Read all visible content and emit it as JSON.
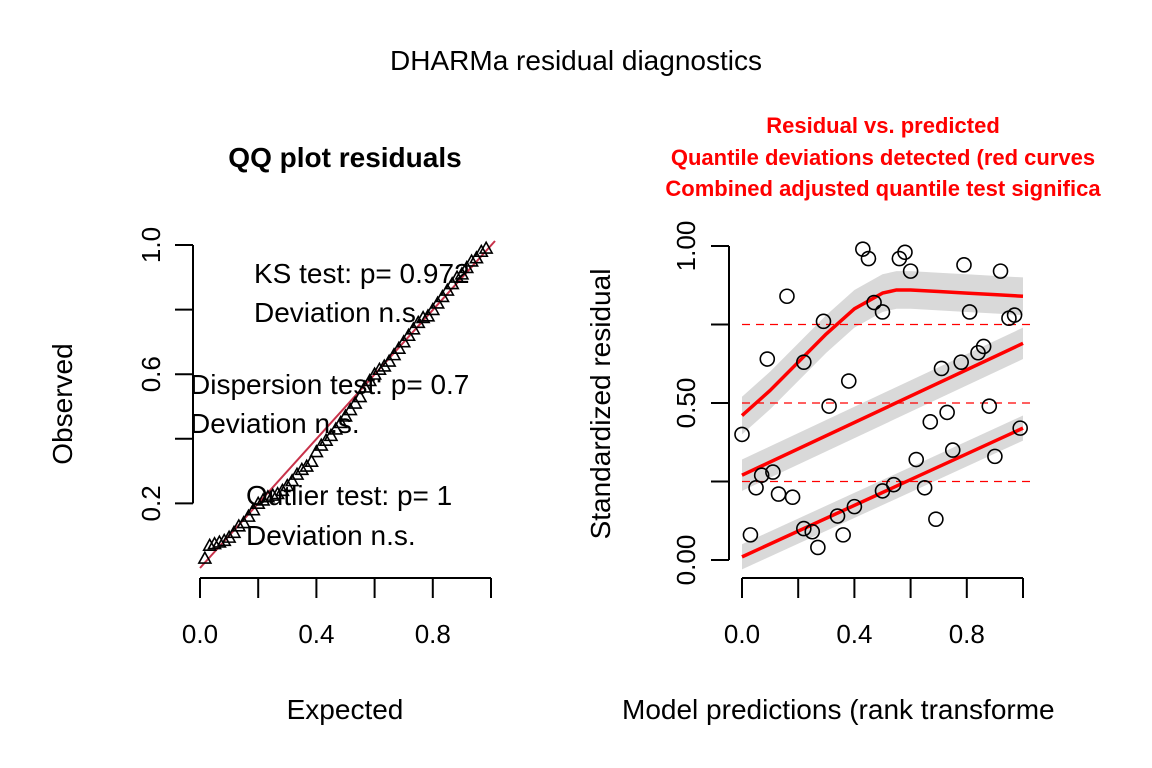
{
  "figure": {
    "title": "DHARMa residual diagnostics"
  },
  "chart_data": [
    {
      "type": "scatter",
      "title": "QQ plot residuals",
      "xlabel": "Expected",
      "ylabel": "Observed",
      "xlim": [
        0,
        1
      ],
      "ylim": [
        0,
        1
      ],
      "xticks": [
        "0.0",
        "0.4",
        "0.8"
      ],
      "yticks": [
        "0.2",
        "0.6",
        "1.0"
      ],
      "grid": false,
      "marker": "triangle",
      "reference_line": {
        "from": [
          0,
          0
        ],
        "to": [
          1,
          1
        ],
        "color": "#c8324a"
      },
      "annotations": [
        {
          "text": "KS test: p= 0.972",
          "line2": "Deviation  n.s."
        },
        {
          "text": "Dispersion test: p= 0.7",
          "line2": "Deviation  n.s."
        },
        {
          "text": "Outlier test: p= 1",
          "line2": "Deviation  n.s."
        }
      ],
      "x": [
        0.0167,
        0.0333,
        0.05,
        0.0667,
        0.0833,
        0.1,
        0.1167,
        0.1333,
        0.15,
        0.1667,
        0.1833,
        0.2,
        0.2167,
        0.2333,
        0.25,
        0.2667,
        0.2833,
        0.3,
        0.3167,
        0.3333,
        0.35,
        0.3667,
        0.3833,
        0.4,
        0.4167,
        0.4333,
        0.45,
        0.4667,
        0.4833,
        0.5,
        0.5167,
        0.5333,
        0.55,
        0.5667,
        0.5833,
        0.6,
        0.6167,
        0.6333,
        0.65,
        0.6667,
        0.6833,
        0.7,
        0.7167,
        0.7333,
        0.75,
        0.7667,
        0.7833,
        0.8,
        0.8167,
        0.8333,
        0.85,
        0.8667,
        0.8833,
        0.9,
        0.9167,
        0.9333,
        0.95,
        0.9667,
        0.9833
      ],
      "y": [
        0.03,
        0.07,
        0.075,
        0.08,
        0.085,
        0.095,
        0.11,
        0.13,
        0.14,
        0.16,
        0.18,
        0.2,
        0.21,
        0.22,
        0.225,
        0.23,
        0.24,
        0.255,
        0.27,
        0.29,
        0.305,
        0.315,
        0.33,
        0.36,
        0.38,
        0.395,
        0.41,
        0.43,
        0.45,
        0.47,
        0.49,
        0.51,
        0.53,
        0.56,
        0.58,
        0.6,
        0.615,
        0.625,
        0.64,
        0.66,
        0.68,
        0.7,
        0.72,
        0.74,
        0.76,
        0.775,
        0.78,
        0.8,
        0.82,
        0.84,
        0.86,
        0.88,
        0.9,
        0.91,
        0.93,
        0.95,
        0.96,
        0.98,
        0.99
      ]
    },
    {
      "type": "scatter",
      "title_lines": [
        "Residual vs. predicted",
        "Quantile deviations detected (red curves",
        "Combined adjusted quantile test significa"
      ],
      "title_color": "#ff0000",
      "xlabel": "Model predictions (rank transforme",
      "ylabel": "Standardized residual",
      "xlim": [
        0,
        1
      ],
      "ylim": [
        0,
        1
      ],
      "xticks": [
        "0.0",
        "0.4",
        "0.8"
      ],
      "yticks": [
        "0.00",
        "0.50",
        "1.00"
      ],
      "grid": false,
      "marker": "circle",
      "reference_lines": [
        0.25,
        0.5,
        0.75
      ],
      "reference_color": "#ff0000",
      "points": [
        [
          0.0,
          0.4
        ],
        [
          0.03,
          0.08
        ],
        [
          0.05,
          0.23
        ],
        [
          0.07,
          0.27
        ],
        [
          0.09,
          0.64
        ],
        [
          0.11,
          0.28
        ],
        [
          0.13,
          0.21
        ],
        [
          0.16,
          0.84
        ],
        [
          0.18,
          0.2
        ],
        [
          0.22,
          0.1
        ],
        [
          0.22,
          0.63
        ],
        [
          0.25,
          0.09
        ],
        [
          0.27,
          0.04
        ],
        [
          0.29,
          0.76
        ],
        [
          0.31,
          0.49
        ],
        [
          0.34,
          0.14
        ],
        [
          0.36,
          0.08
        ],
        [
          0.38,
          0.57
        ],
        [
          0.4,
          0.17
        ],
        [
          0.43,
          0.99
        ],
        [
          0.45,
          0.96
        ],
        [
          0.47,
          0.82
        ],
        [
          0.5,
          0.22
        ],
        [
          0.5,
          0.79
        ],
        [
          0.54,
          0.24
        ],
        [
          0.56,
          0.96
        ],
        [
          0.58,
          0.98
        ],
        [
          0.6,
          0.92
        ],
        [
          0.62,
          0.32
        ],
        [
          0.65,
          0.23
        ],
        [
          0.67,
          0.44
        ],
        [
          0.69,
          0.13
        ],
        [
          0.71,
          0.61
        ],
        [
          0.73,
          0.47
        ],
        [
          0.75,
          0.35
        ],
        [
          0.78,
          0.63
        ],
        [
          0.79,
          0.94
        ],
        [
          0.81,
          0.79
        ],
        [
          0.84,
          0.66
        ],
        [
          0.86,
          0.68
        ],
        [
          0.88,
          0.49
        ],
        [
          0.9,
          0.33
        ],
        [
          0.92,
          0.92
        ],
        [
          0.95,
          0.77
        ],
        [
          0.97,
          0.78
        ],
        [
          0.99,
          0.42
        ]
      ],
      "quantile_curves": [
        {
          "quantile": 0.25,
          "x": [
            0.0,
            1.0
          ],
          "y": [
            0.01,
            0.42
          ],
          "band": 0.04
        },
        {
          "quantile": 0.5,
          "x": [
            0.0,
            1.0
          ],
          "y": [
            0.27,
            0.69
          ],
          "band": 0.05
        },
        {
          "quantile": 0.75,
          "x": [
            0.0,
            0.1,
            0.2,
            0.3,
            0.4,
            0.5,
            0.55,
            0.6,
            0.7,
            0.8,
            0.9,
            1.0
          ],
          "y": [
            0.46,
            0.54,
            0.63,
            0.72,
            0.8,
            0.85,
            0.86,
            0.86,
            0.855,
            0.85,
            0.845,
            0.84
          ],
          "band": 0.06
        }
      ],
      "curve_color": "#ff0000",
      "band_color": "#d9d9d9"
    }
  ]
}
